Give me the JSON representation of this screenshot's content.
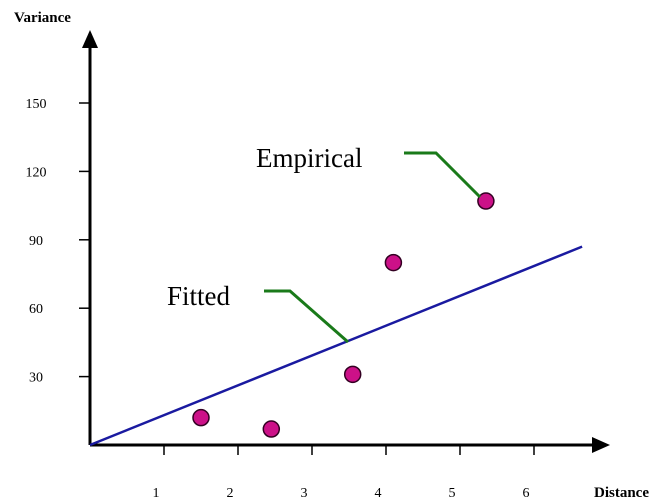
{
  "chart_data": {
    "type": "scatter",
    "title": "",
    "xlabel": "Distance",
    "ylabel": "Variance",
    "xlim": [
      0,
      7
    ],
    "ylim": [
      0,
      175
    ],
    "x_ticks": [
      1,
      2,
      3,
      4,
      5,
      6
    ],
    "y_ticks": [
      30,
      60,
      90,
      120,
      150
    ],
    "grid": false,
    "series": [
      {
        "type": "scatter",
        "color": "#cc1188",
        "points": [
          {
            "x": 1.5,
            "y": 12
          },
          {
            "x": 2.45,
            "y": 7
          },
          {
            "x": 3.55,
            "y": 31
          },
          {
            "x": 4.1,
            "y": 80
          },
          {
            "x": 5.35,
            "y": 107
          }
        ]
      },
      {
        "type": "line",
        "color": "#1a1aa0",
        "points": [
          {
            "x": 0,
            "y": 0
          },
          {
            "x": 6.65,
            "y": 87
          }
        ]
      }
    ],
    "annotations": [
      {
        "text": "Empirical",
        "color": "#1a7a1a"
      },
      {
        "text": "Fitted",
        "color": "#1a7a1a"
      }
    ]
  }
}
